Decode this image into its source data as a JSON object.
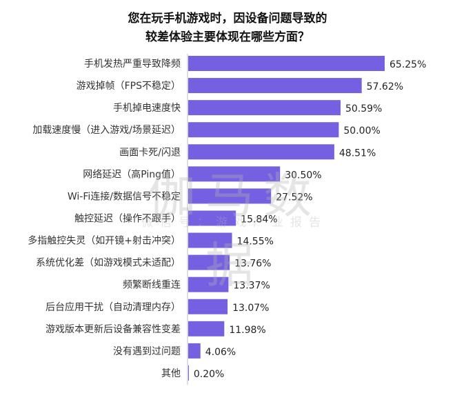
{
  "chart_data": {
    "type": "bar",
    "orientation": "horizontal",
    "title": "您在玩手机游戏时，因设备问题导致的\n较差体验主要体现在哪些方面？",
    "title_lines": [
      "您在玩手机游戏时，因设备问题导致的",
      "较差体验主要体现在哪些方面？"
    ],
    "categories": [
      "手机发热严重导致降频",
      "游戏掉帧（FPS不稳定）",
      "手机掉电速度快",
      "加载速度慢（进入游戏/场景延迟）",
      "画面卡死/闪退",
      "网络延迟（高Ping值）",
      "Wi-Fi连接/数据信号不稳定",
      "触控延迟（操作不跟手）",
      "多指触控失灵（如开镜+射击冲突）",
      "系统优化差（如游戏模式未适配）",
      "频繁断线重连",
      "后台应用干扰（自动清理内存）",
      "游戏版本更新后设备兼容性变差",
      "没有遇到过问题",
      "其他"
    ],
    "values": [
      65.25,
      57.62,
      50.59,
      50.0,
      48.51,
      30.5,
      27.52,
      15.84,
      14.55,
      13.76,
      13.37,
      13.07,
      11.98,
      4.06,
      0.2
    ],
    "value_labels": [
      "65.25%",
      "57.62%",
      "50.59%",
      "50.00%",
      "48.51%",
      "30.50%",
      "27.52%",
      "15.84%",
      "14.55%",
      "13.76%",
      "13.37%",
      "13.07%",
      "11.98%",
      "4.06%",
      "0.20%"
    ],
    "unit": "%",
    "xlim": [
      0,
      70
    ],
    "grid": false,
    "bar_color": "#7460e1"
  },
  "watermark": {
    "main": "伽马数据",
    "sub": "微信号：游戏产业报告"
  }
}
